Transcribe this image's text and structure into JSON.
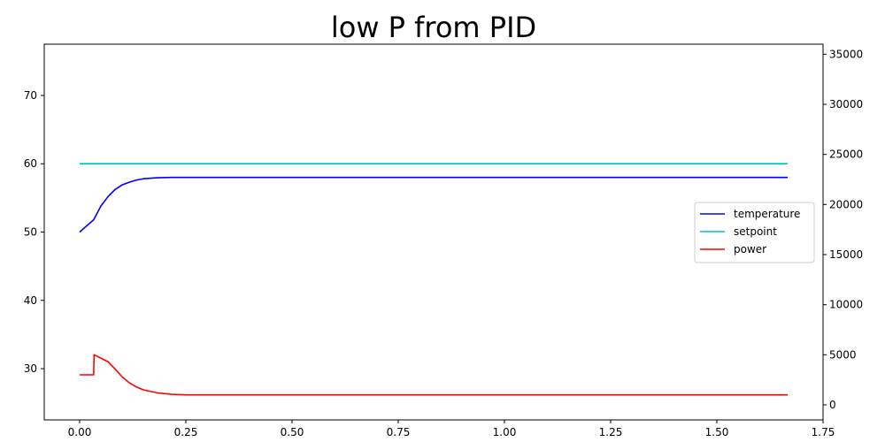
{
  "chart_data": {
    "type": "line",
    "title": "low P from PID",
    "xlabel": "",
    "ylabel": "",
    "y2label": "",
    "xlim": [
      -0.0833,
      1.75
    ],
    "ylim": [
      22.5,
      77.5
    ],
    "y2lim": [
      -1500,
      36000
    ],
    "xticks": [
      0.0,
      0.25,
      0.5,
      0.75,
      1.0,
      1.25,
      1.5,
      1.75
    ],
    "xtick_labels": [
      "0.00",
      "0.25",
      "0.50",
      "0.75",
      "1.00",
      "1.25",
      "1.50",
      "1.75"
    ],
    "yticks": [
      30,
      40,
      50,
      60,
      70
    ],
    "ytick_labels": [
      "30",
      "40",
      "50",
      "60",
      "70"
    ],
    "y2ticks": [
      0,
      5000,
      10000,
      15000,
      20000,
      25000,
      30000,
      35000
    ],
    "y2tick_labels": [
      "0",
      "5000",
      "10000",
      "15000",
      "20000",
      "25000",
      "30000",
      "35000"
    ],
    "grid": false,
    "legend_position": "center-right",
    "series": [
      {
        "name": "temperature",
        "axis": "left",
        "color": "#0000ff",
        "points": [
          [
            0.0,
            50.0
          ],
          [
            0.033,
            51.8
          ],
          [
            0.05,
            53.8
          ],
          [
            0.067,
            55.2
          ],
          [
            0.083,
            56.2
          ],
          [
            0.1,
            56.9
          ],
          [
            0.117,
            57.3
          ],
          [
            0.133,
            57.6
          ],
          [
            0.15,
            57.8
          ],
          [
            0.183,
            57.95
          ],
          [
            0.217,
            58.0
          ],
          [
            0.3,
            58.0
          ],
          [
            1.667,
            58.0
          ]
        ]
      },
      {
        "name": "setpoint",
        "axis": "left",
        "color": "#00bfbf",
        "points": [
          [
            0.0,
            60.0
          ],
          [
            1.667,
            60.0
          ]
        ]
      },
      {
        "name": "power",
        "axis": "right",
        "color": "#ff0000",
        "points": [
          [
            0.0,
            3000
          ],
          [
            0.033,
            3000
          ],
          [
            0.034,
            5000
          ],
          [
            0.067,
            4300
          ],
          [
            0.083,
            3600
          ],
          [
            0.1,
            2800
          ],
          [
            0.117,
            2200
          ],
          [
            0.133,
            1800
          ],
          [
            0.15,
            1500
          ],
          [
            0.183,
            1200
          ],
          [
            0.217,
            1050
          ],
          [
            0.25,
            1000
          ],
          [
            0.3,
            1000
          ],
          [
            1.667,
            1000
          ]
        ]
      }
    ]
  }
}
